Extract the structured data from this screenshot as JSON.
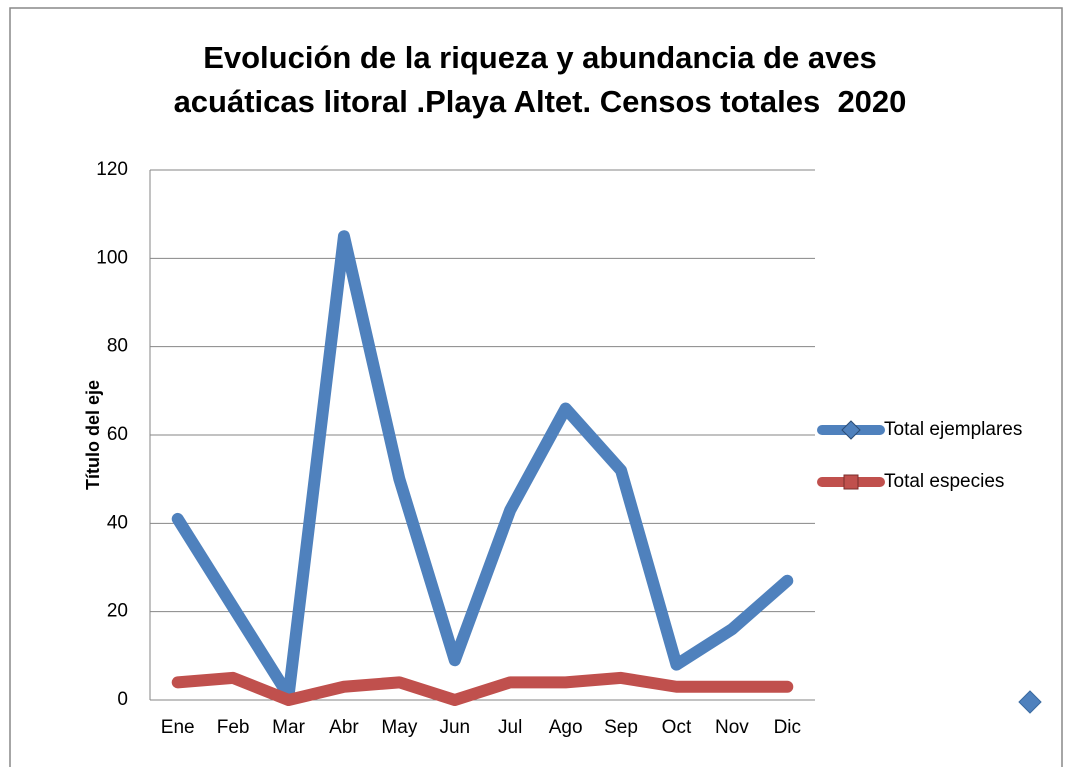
{
  "chart_data": {
    "type": "line",
    "title": "Evolución de la riqueza y abundancia de aves acuáticas litoral .Playa Altet. Censos totales  2020",
    "y_axis_label": "Título del eje",
    "categories": [
      "Ene",
      "Feb",
      "Mar",
      "Abr",
      "May",
      "Jun",
      "Jul",
      "Ago",
      "Sep",
      "Oct",
      "Nov",
      "Dic"
    ],
    "series": [
      {
        "name": "Total ejemplares",
        "color": "#4f81bd",
        "values": [
          41,
          21,
          1,
          105,
          50,
          9,
          43,
          66,
          52,
          8,
          16,
          27
        ]
      },
      {
        "name": "Total especies",
        "color": "#c0504d",
        "values": [
          4,
          5,
          0,
          3,
          4,
          0,
          4,
          4,
          5,
          3,
          3,
          3
        ]
      }
    ],
    "ylim": [
      0,
      120
    ],
    "yticks": [
      0,
      20,
      40,
      60,
      80,
      100,
      120
    ],
    "grid": true,
    "legend": "right"
  }
}
